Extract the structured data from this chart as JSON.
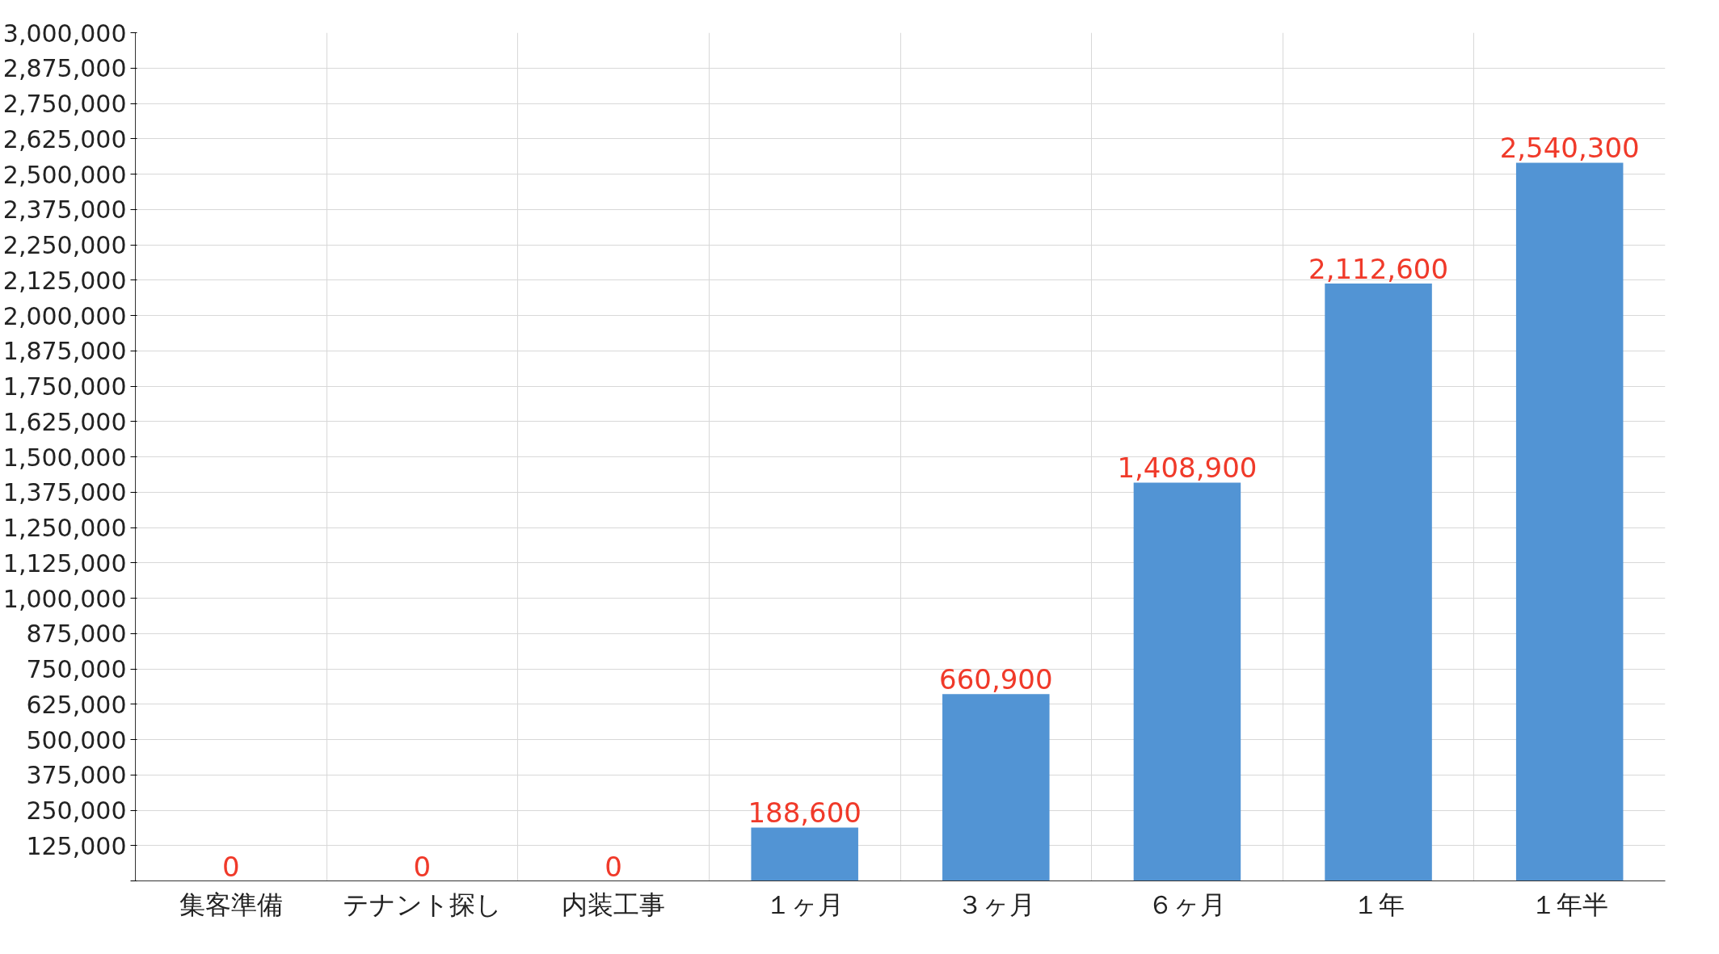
{
  "chart_data": {
    "type": "bar",
    "categories": [
      "集客準備",
      "テナント探し",
      "内装工事",
      "１ヶ月",
      "３ヶ月",
      "６ヶ月",
      "１年",
      "１年半"
    ],
    "values": [
      0,
      0,
      0,
      188600,
      660900,
      1408900,
      2112600,
      2540300
    ],
    "color": "#5294d4",
    "data_labels": true,
    "value_labels": [
      "0",
      "0",
      "0",
      "188,600",
      "660,900",
      "1,408,900",
      "2,112,600",
      "2,540,300"
    ],
    "ylim": [
      0,
      3000000
    ],
    "yticks": [
      {
        "value": 0,
        "label": null
      },
      {
        "value": 125000,
        "label": "125,000"
      },
      {
        "value": 250000,
        "label": "250,000"
      },
      {
        "value": 375000,
        "label": "375,000"
      },
      {
        "value": 500000,
        "label": "500,000"
      },
      {
        "value": 625000,
        "label": "625,000"
      },
      {
        "value": 750000,
        "label": "750,000"
      },
      {
        "value": 875000,
        "label": "875,000"
      },
      {
        "value": 1000000,
        "label": "1,000,000"
      },
      {
        "value": 1125000,
        "label": "1,125,000"
      },
      {
        "value": 1250000,
        "label": "1,250,000"
      },
      {
        "value": 1375000,
        "label": "1,375,000"
      },
      {
        "value": 1500000,
        "label": "1,500,000"
      },
      {
        "value": 1625000,
        "label": "1,625,000"
      },
      {
        "value": 1750000,
        "label": "1,750,000"
      },
      {
        "value": 1875000,
        "label": "1,875,000"
      },
      {
        "value": 2000000,
        "label": "2,000,000"
      },
      {
        "value": 2125000,
        "label": "2,125,000"
      },
      {
        "value": 2250000,
        "label": "2,250,000"
      },
      {
        "value": 2375000,
        "label": "2,375,000"
      },
      {
        "value": 2500000,
        "label": "2,500,000"
      },
      {
        "value": 2625000,
        "label": "2,625,000"
      },
      {
        "value": 2750000,
        "label": "2,750,000"
      },
      {
        "value": 2875000,
        "label": "2,875,000"
      },
      {
        "value": 3000000,
        "label": "3,000,000"
      }
    ],
    "grid": true
  }
}
